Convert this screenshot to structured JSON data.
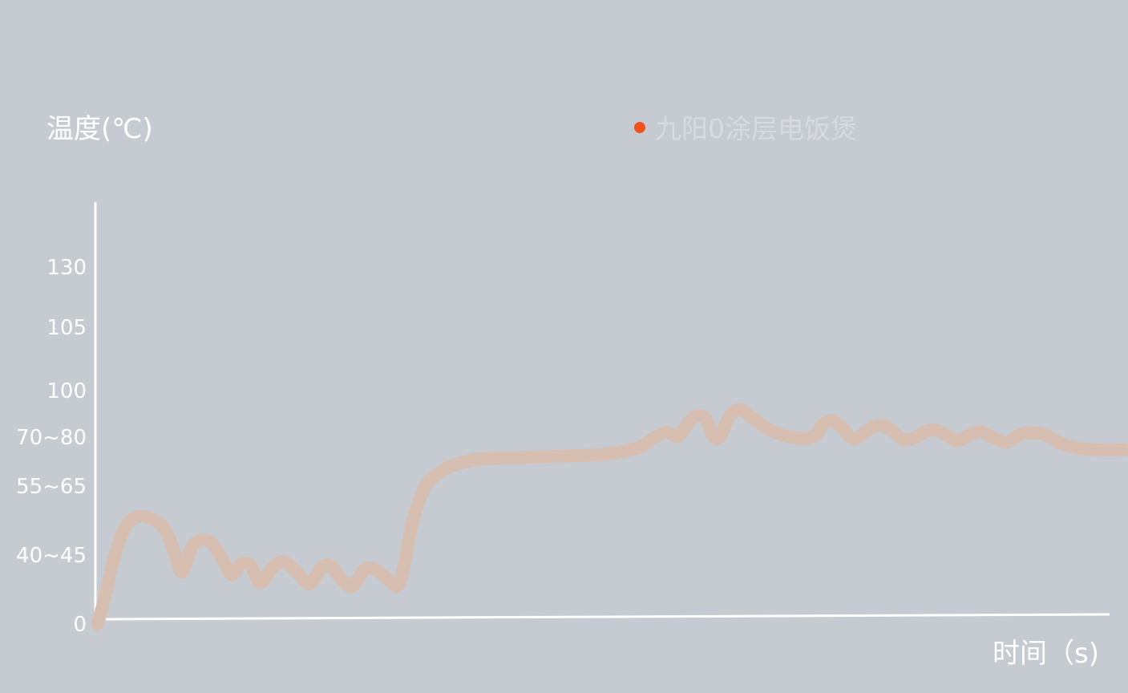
{
  "chart_data": {
    "type": "line",
    "ylabel": "温度(℃)",
    "xlabel": "时间（s)",
    "y_tick_labels": [
      "0",
      "40~45",
      "55~65",
      "70~80",
      "100",
      "105",
      "130"
    ],
    "x_tick_labels": [],
    "legend": {
      "position": "top-center",
      "series_name": "九阳0涂层电饭煲",
      "marker_color": "#f0521e"
    },
    "grid": false,
    "colors": {
      "background": "#c6cad1",
      "axis": "#ffffff",
      "series": "#d6bfb1",
      "legend_dot": "#f0521e",
      "legend_text": "#d8dbe0"
    },
    "series": [
      {
        "name": "九阳0涂层电饭煲",
        "points": [
          [
            0,
            0
          ],
          [
            0.5,
            0.45
          ],
          [
            1,
            0.93
          ],
          [
            1.6,
            1.35
          ],
          [
            2.4,
            1.55
          ],
          [
            3.4,
            1.52
          ],
          [
            4.2,
            1.38
          ],
          [
            4.8,
            1.05
          ],
          [
            5.3,
            0.75
          ],
          [
            6,
            1.15
          ],
          [
            7,
            1.2
          ],
          [
            7.8,
            0.95
          ],
          [
            8.4,
            0.72
          ],
          [
            9,
            0.87
          ],
          [
            9.6,
            0.85
          ],
          [
            10.2,
            0.6
          ],
          [
            11,
            0.82
          ],
          [
            11.7,
            0.9
          ],
          [
            12.5,
            0.75
          ],
          [
            13.3,
            0.58
          ],
          [
            14,
            0.8
          ],
          [
            14.6,
            0.85
          ],
          [
            15.3,
            0.65
          ],
          [
            16,
            0.55
          ],
          [
            16.7,
            0.78
          ],
          [
            17.3,
            0.8
          ],
          [
            18,
            0.7
          ],
          [
            18.8,
            0.55
          ],
          [
            19.2,
            0.8
          ],
          [
            19.8,
            1.5
          ],
          [
            20.6,
            2.0
          ],
          [
            21.6,
            2.3
          ],
          [
            22.6,
            2.45
          ],
          [
            24,
            2.55
          ],
          [
            26,
            2.58
          ],
          [
            28,
            2.6
          ],
          [
            30,
            2.62
          ],
          [
            31.8,
            2.65
          ],
          [
            33.2,
            2.72
          ],
          [
            34.2,
            2.82
          ],
          [
            35,
            3.0
          ],
          [
            35.8,
            3.1
          ],
          [
            36.5,
            3.02
          ],
          [
            37.1,
            3.3
          ],
          [
            37.6,
            3.45
          ],
          [
            38.2,
            3.4
          ],
          [
            38.6,
            3.05
          ],
          [
            39.1,
            3.0
          ],
          [
            39.6,
            3.4
          ],
          [
            40.3,
            3.6
          ],
          [
            41,
            3.45
          ],
          [
            42,
            3.2
          ],
          [
            43,
            3.05
          ],
          [
            44,
            2.98
          ],
          [
            45,
            3.02
          ],
          [
            45.6,
            3.28
          ],
          [
            46.2,
            3.35
          ],
          [
            46.8,
            3.2
          ],
          [
            47.4,
            2.97
          ],
          [
            48,
            3.05
          ],
          [
            48.6,
            3.2
          ],
          [
            49.3,
            3.25
          ],
          [
            49.9,
            3.15
          ],
          [
            50.6,
            2.95
          ],
          [
            51.3,
            2.98
          ],
          [
            52,
            3.12
          ],
          [
            52.7,
            3.15
          ],
          [
            53.3,
            3.05
          ],
          [
            54,
            2.92
          ],
          [
            54.8,
            3.05
          ],
          [
            55.5,
            3.12
          ],
          [
            56.2,
            3.0
          ],
          [
            57.1,
            2.9
          ],
          [
            57.9,
            3.05
          ],
          [
            58.6,
            3.1
          ],
          [
            59.5,
            3.05
          ],
          [
            60.5,
            2.88
          ],
          [
            61.5,
            2.78
          ],
          [
            62.8,
            2.74
          ],
          [
            64.5,
            2.74
          ]
        ]
      }
    ]
  }
}
